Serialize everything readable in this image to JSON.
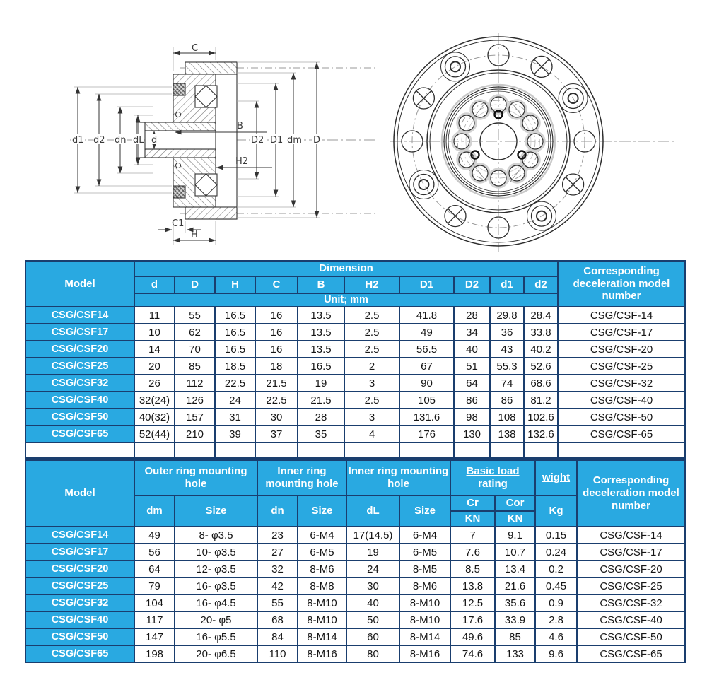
{
  "colors": {
    "header_blue": "#29a9e1",
    "border_navy": "#1a3e6e",
    "row_text": "#161616",
    "white": "#ffffff"
  },
  "drawings": {
    "section_view": {
      "labels": {
        "C": "C",
        "B": "B",
        "H2": "H2",
        "D2": "D2",
        "D1": "D1",
        "dm": "dm",
        "D": "D",
        "d1": "d1",
        "d2": "d2",
        "dn": "dn",
        "dL": "dL",
        "d": "d",
        "C1": "C1",
        "H": "H"
      }
    },
    "front_view": {
      "description": "front view of reducer flange"
    }
  },
  "table1": {
    "header": {
      "model": "Model",
      "dimension": "Dimension",
      "unit": "Unit;  mm",
      "columns": [
        "d",
        "D",
        "H",
        "C",
        "B",
        "H2",
        "D1",
        "D2",
        "d1",
        "d2"
      ],
      "corresponding": "Corresponding deceleration model number"
    },
    "rows": [
      [
        "CSG/CSF14",
        "11",
        "55",
        "16.5",
        "16",
        "13.5",
        "2.5",
        "41.8",
        "28",
        "29.8",
        "28.4",
        "CSG/CSF-14"
      ],
      [
        "CSG/CSF17",
        "10",
        "62",
        "16.5",
        "16",
        "13.5",
        "2.5",
        "49",
        "34",
        "36",
        "33.8",
        "CSG/CSF-17"
      ],
      [
        "CSG/CSF20",
        "14",
        "70",
        "16.5",
        "16",
        "13.5",
        "2.5",
        "56.5",
        "40",
        "43",
        "40.2",
        "CSG/CSF-20"
      ],
      [
        "CSG/CSF25",
        "20",
        "85",
        "18.5",
        "18",
        "16.5",
        "2",
        "67",
        "51",
        "55.3",
        "52.6",
        "CSG/CSF-25"
      ],
      [
        "CSG/CSF32",
        "26",
        "112",
        "22.5",
        "21.5",
        "19",
        "3",
        "90",
        "64",
        "74",
        "68.6",
        "CSG/CSF-32"
      ],
      [
        "CSG/CSF40",
        "32(24)",
        "126",
        "24",
        "22.5",
        "21.5",
        "2.5",
        "105",
        "86",
        "86",
        "81.2",
        "CSG/CSF-40"
      ],
      [
        "CSG/CSF50",
        "40(32)",
        "157",
        "31",
        "30",
        "28",
        "3",
        "131.6",
        "98",
        "108",
        "102.6",
        "CSG/CSF-50"
      ],
      [
        "CSG/CSF65",
        "52(44)",
        "210",
        "39",
        "37",
        "35",
        "4",
        "176",
        "130",
        "138",
        "132.6",
        "CSG/CSF-65"
      ]
    ]
  },
  "table2": {
    "header": {
      "model": "Model",
      "groups": [
        "Outer ring mounting hole",
        "Inner ring mounting hole",
        "Inner ring mounting hole",
        "Basic load rating",
        "wight"
      ],
      "sub": [
        "dm",
        "Size",
        "dn",
        "Size",
        "dL",
        "Size",
        "Cr",
        "Cor",
        "Kg"
      ],
      "kn": "KN",
      "corresponding": "Corresponding deceleration model number"
    },
    "rows": [
      [
        "CSG/CSF14",
        "49",
        "8- φ3.5",
        "23",
        "6-M4",
        "17(14.5)",
        "6-M4",
        "7",
        "9.1",
        "0.15",
        "CSG/CSF-14"
      ],
      [
        "CSG/CSF17",
        "56",
        "10- φ3.5",
        "27",
        "6-M5",
        "19",
        "6-M5",
        "7.6",
        "10.7",
        "0.24",
        "CSG/CSF-17"
      ],
      [
        "CSG/CSF20",
        "64",
        "12- φ3.5",
        "32",
        "8-M6",
        "24",
        "8-M5",
        "8.5",
        "13.4",
        "0.2",
        "CSG/CSF-20"
      ],
      [
        "CSG/CSF25",
        "79",
        "16- φ3.5",
        "42",
        "8-M8",
        "30",
        "8-M6",
        "13.8",
        "21.6",
        "0.45",
        "CSG/CSF-25"
      ],
      [
        "CSG/CSF32",
        "104",
        "16- φ4.5",
        "55",
        "8-M10",
        "40",
        "8-M10",
        "12.5",
        "35.6",
        "0.9",
        "CSG/CSF-32"
      ],
      [
        "CSG/CSF40",
        "117",
        "20- φ5",
        "68",
        "8-M10",
        "50",
        "8-M10",
        "17.6",
        "33.9",
        "2.8",
        "CSG/CSF-40"
      ],
      [
        "CSG/CSF50",
        "147",
        "16- φ5.5",
        "84",
        "8-M14",
        "60",
        "8-M14",
        "49.6",
        "85",
        "4.6",
        "CSG/CSF-50"
      ],
      [
        "CSG/CSF65",
        "198",
        "20- φ6.5",
        "110",
        "8-M16",
        "80",
        "8-M16",
        "74.6",
        "133",
        "9.6",
        "CSG/CSF-65"
      ]
    ]
  }
}
